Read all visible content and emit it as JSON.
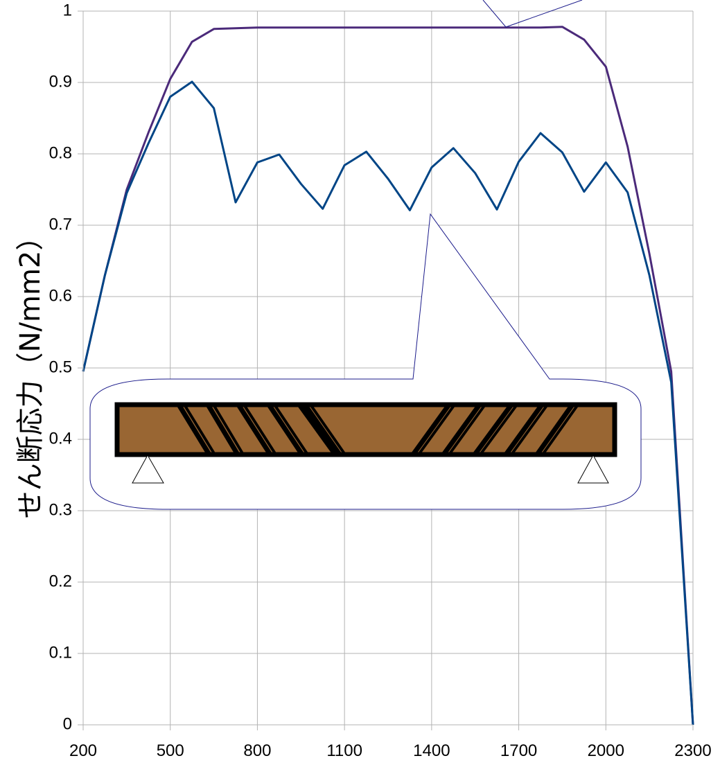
{
  "chart_data": {
    "type": "line",
    "title": "",
    "xlabel": "",
    "ylabel": "せん断応力（N/mm2）",
    "xlim": [
      200,
      2300
    ],
    "ylim": [
      0,
      1
    ],
    "grid": true,
    "x_ticks": [
      "200",
      "500",
      "800",
      "1100",
      "1400",
      "1700",
      "2000",
      "2300"
    ],
    "y_ticks": [
      "0",
      "0.1",
      "0.2",
      "0.3",
      "0.4",
      "0.5",
      "0.6",
      "0.7",
      "0.8",
      "0.9",
      "1"
    ],
    "series": [
      {
        "color": "#4b2a7a",
        "x": [
          200,
          275,
          350,
          425,
          500,
          575,
          650,
          725,
          800,
          875,
          950,
          1025,
          1100,
          1175,
          1250,
          1325,
          1400,
          1475,
          1550,
          1625,
          1700,
          1775,
          1850,
          1925,
          2000,
          2075,
          2150,
          2225,
          2300
        ],
        "y": [
          0.495,
          0.63,
          0.75,
          0.83,
          0.905,
          0.957,
          0.975,
          0.976,
          0.977,
          0.977,
          0.977,
          0.977,
          0.977,
          0.977,
          0.977,
          0.977,
          0.977,
          0.977,
          0.977,
          0.977,
          0.977,
          0.977,
          0.978,
          0.96,
          0.922,
          0.81,
          0.66,
          0.495,
          0.0
        ]
      },
      {
        "color": "#004586",
        "x": [
          200,
          275,
          350,
          425,
          500,
          575,
          650,
          725,
          800,
          875,
          950,
          1025,
          1100,
          1175,
          1250,
          1325,
          1400,
          1475,
          1550,
          1625,
          1700,
          1775,
          1850,
          1925,
          2000,
          2075,
          2150,
          2225,
          2300
        ],
        "y": [
          0.495,
          0.63,
          0.745,
          0.815,
          0.88,
          0.901,
          0.864,
          0.732,
          0.788,
          0.799,
          0.758,
          0.723,
          0.784,
          0.803,
          0.765,
          0.721,
          0.781,
          0.808,
          0.773,
          0.722,
          0.789,
          0.829,
          0.802,
          0.747,
          0.788,
          0.746,
          0.63,
          0.48,
          0.0
        ]
      }
    ]
  },
  "colors": {
    "grid": "#b3b3b3",
    "callout_border": "#1a1a8a",
    "beam_fill": "#996633",
    "beam_outline": "#000000"
  }
}
